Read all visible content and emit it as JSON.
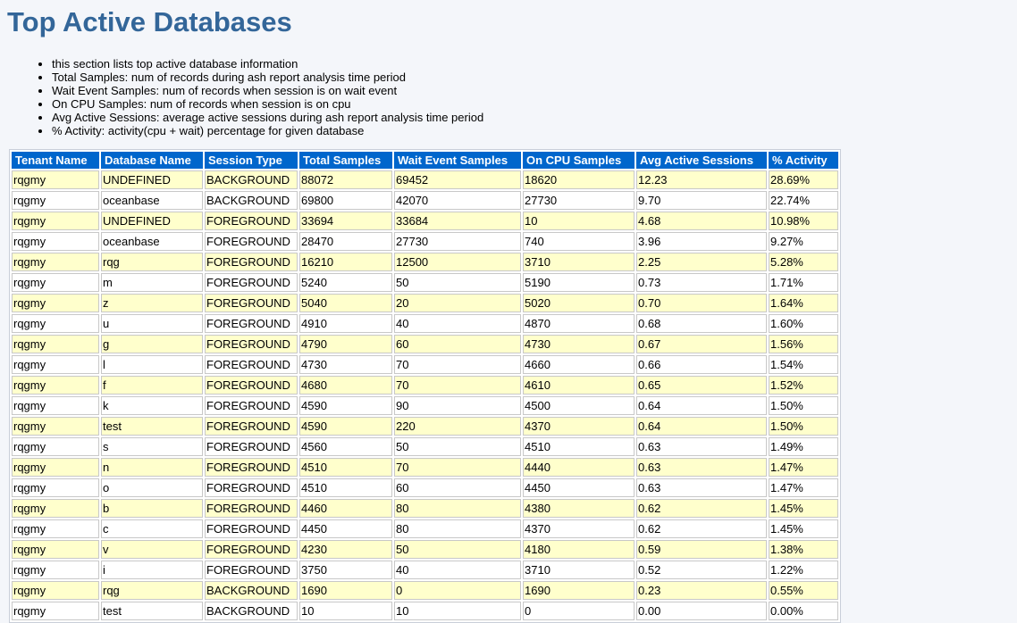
{
  "title": "Top Active Databases",
  "notes": [
    "this section lists top active database information",
    "Total Samples: num of records during ash report analysis time period",
    "Wait Event Samples: num of records when session is on wait event",
    "On CPU Samples: num of records when session is on cpu",
    "Avg Active Sessions: average active sessions during ash report analysis time period",
    "% Activity: activity(cpu + wait) percentage for given database"
  ],
  "table": {
    "headers": [
      "Tenant Name",
      "Database Name",
      "Session Type",
      "Total Samples",
      "Wait Event Samples",
      "On CPU Samples",
      "Avg Active Sessions",
      "% Activity"
    ],
    "rows": [
      [
        "rqgmy",
        "UNDEFINED",
        "BACKGROUND",
        "88072",
        "69452",
        "18620",
        "12.23",
        "28.69%"
      ],
      [
        "rqgmy",
        "oceanbase",
        "BACKGROUND",
        "69800",
        "42070",
        "27730",
        "9.70",
        "22.74%"
      ],
      [
        "rqgmy",
        "UNDEFINED",
        "FOREGROUND",
        "33694",
        "33684",
        "10",
        "4.68",
        "10.98%"
      ],
      [
        "rqgmy",
        "oceanbase",
        "FOREGROUND",
        "28470",
        "27730",
        "740",
        "3.96",
        "9.27%"
      ],
      [
        "rqgmy",
        "rqg",
        "FOREGROUND",
        "16210",
        "12500",
        "3710",
        "2.25",
        "5.28%"
      ],
      [
        "rqgmy",
        "m",
        "FOREGROUND",
        "5240",
        "50",
        "5190",
        "0.73",
        "1.71%"
      ],
      [
        "rqgmy",
        "z",
        "FOREGROUND",
        "5040",
        "20",
        "5020",
        "0.70",
        "1.64%"
      ],
      [
        "rqgmy",
        "u",
        "FOREGROUND",
        "4910",
        "40",
        "4870",
        "0.68",
        "1.60%"
      ],
      [
        "rqgmy",
        "g",
        "FOREGROUND",
        "4790",
        "60",
        "4730",
        "0.67",
        "1.56%"
      ],
      [
        "rqgmy",
        "l",
        "FOREGROUND",
        "4730",
        "70",
        "4660",
        "0.66",
        "1.54%"
      ],
      [
        "rqgmy",
        "f",
        "FOREGROUND",
        "4680",
        "70",
        "4610",
        "0.65",
        "1.52%"
      ],
      [
        "rqgmy",
        "k",
        "FOREGROUND",
        "4590",
        "90",
        "4500",
        "0.64",
        "1.50%"
      ],
      [
        "rqgmy",
        "test",
        "FOREGROUND",
        "4590",
        "220",
        "4370",
        "0.64",
        "1.50%"
      ],
      [
        "rqgmy",
        "s",
        "FOREGROUND",
        "4560",
        "50",
        "4510",
        "0.63",
        "1.49%"
      ],
      [
        "rqgmy",
        "n",
        "FOREGROUND",
        "4510",
        "70",
        "4440",
        "0.63",
        "1.47%"
      ],
      [
        "rqgmy",
        "o",
        "FOREGROUND",
        "4510",
        "60",
        "4450",
        "0.63",
        "1.47%"
      ],
      [
        "rqgmy",
        "b",
        "FOREGROUND",
        "4460",
        "80",
        "4380",
        "0.62",
        "1.45%"
      ],
      [
        "rqgmy",
        "c",
        "FOREGROUND",
        "4450",
        "80",
        "4370",
        "0.62",
        "1.45%"
      ],
      [
        "rqgmy",
        "v",
        "FOREGROUND",
        "4230",
        "50",
        "4180",
        "0.59",
        "1.38%"
      ],
      [
        "rqgmy",
        "i",
        "FOREGROUND",
        "3750",
        "40",
        "3710",
        "0.52",
        "1.22%"
      ],
      [
        "rqgmy",
        "rqg",
        "BACKGROUND",
        "1690",
        "0",
        "1690",
        "0.23",
        "0.55%"
      ],
      [
        "rqgmy",
        "test",
        "BACKGROUND",
        "10",
        "10",
        "0",
        "0.00",
        "0.00%"
      ]
    ]
  },
  "colors": {
    "title": "#336699",
    "header_bg": "#0066cc",
    "odd_row_bg": "#ffffcc",
    "even_row_bg": "#ffffff"
  }
}
